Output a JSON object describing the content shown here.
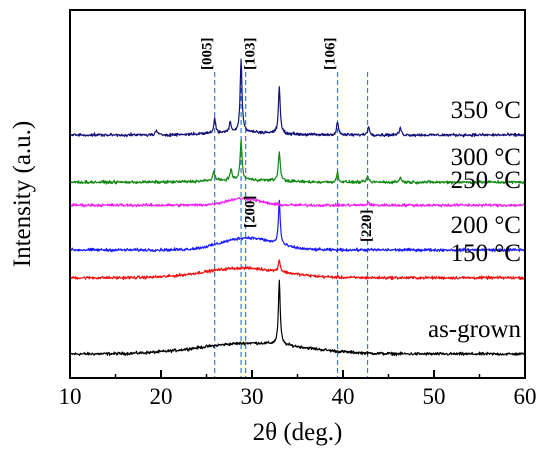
{
  "chart_data": {
    "type": "line",
    "title": "",
    "xlabel": "2θ (deg.)",
    "ylabel": "Intensity (a.u.)",
    "xlim": [
      10,
      60
    ],
    "xticks": [
      "10",
      "20",
      "30",
      "40",
      "50",
      "60"
    ],
    "y_ticks_shown": false,
    "grid": false,
    "legend": "none",
    "series": [
      {
        "name": "as-grown",
        "color": "#000000",
        "baseline": 0.0,
        "hump": {
          "center": 30,
          "width": 8,
          "height": 0.045
        },
        "peaks": [
          {
            "x": 33.0,
            "h": 0.26
          }
        ]
      },
      {
        "name": "150 °C",
        "color": "#ee1111",
        "baseline": 0.315,
        "hump": {
          "center": 29,
          "width": 6,
          "height": 0.04
        },
        "peaks": [
          {
            "x": 33.0,
            "h": 0.05
          }
        ]
      },
      {
        "name": "200 °C",
        "color": "#1b1bff",
        "baseline": 0.43,
        "hump": {
          "center": 29.5,
          "width": 4,
          "height": 0.05
        },
        "peaks": [
          {
            "x": 33.0,
            "h": 0.18
          }
        ]
      },
      {
        "name": "250 °C",
        "color": "#ee22ee",
        "baseline": 0.615,
        "hump": {
          "center": 29,
          "width": 2.5,
          "height": 0.028
        },
        "peaks": [
          {
            "x": 42.8,
            "h": 0.012
          }
        ]
      },
      {
        "name": "300 °C",
        "color": "#118811",
        "baseline": 0.71,
        "hump": {
          "center": 29,
          "width": 5,
          "height": 0.01
        },
        "peaks": [
          {
            "x": 25.8,
            "h": 0.04
          },
          {
            "x": 27.7,
            "h": 0.045
          },
          {
            "x": 28.8,
            "h": 0.165
          },
          {
            "x": 33.0,
            "h": 0.125
          },
          {
            "x": 39.4,
            "h": 0.04
          },
          {
            "x": 42.7,
            "h": 0.025
          },
          {
            "x": 46.3,
            "h": 0.02
          }
        ]
      },
      {
        "name": "350 °C",
        "color": "#111177",
        "baseline": 0.905,
        "hump": {
          "center": 29,
          "width": 5,
          "height": 0.012
        },
        "peaks": [
          {
            "x": 19.5,
            "h": 0.018
          },
          {
            "x": 25.9,
            "h": 0.06
          },
          {
            "x": 27.6,
            "h": 0.045
          },
          {
            "x": 28.8,
            "h": 0.3
          },
          {
            "x": 33.0,
            "h": 0.19
          },
          {
            "x": 39.4,
            "h": 0.055
          },
          {
            "x": 42.8,
            "h": 0.035
          },
          {
            "x": 46.3,
            "h": 0.03
          }
        ]
      }
    ],
    "reference_lines": [
      {
        "x": 25.9,
        "label": ""
      },
      {
        "x": 28.8,
        "label": ""
      },
      {
        "x": 29.3,
        "label": ""
      },
      {
        "x": 39.4,
        "label": ""
      },
      {
        "x": 42.7,
        "label": ""
      }
    ],
    "plane_labels": [
      {
        "text": "[005]",
        "x": 25.9
      },
      {
        "text": "[103]",
        "x": 30.6
      },
      {
        "text": "[106]",
        "x": 39.4
      },
      {
        "text": "[200]",
        "x": 30.6
      },
      {
        "text": "[220]",
        "x": 43.4
      }
    ]
  }
}
